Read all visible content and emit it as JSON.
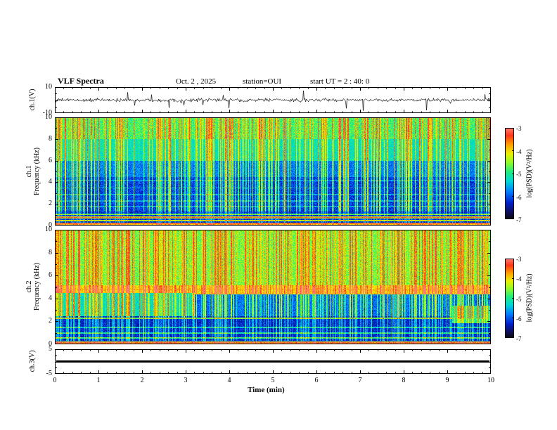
{
  "header": {
    "title": "VLF Spectra",
    "date": "Oct. 2  , 2025",
    "station": "station=OUI",
    "start_ut": "start UT =  2 : 40: 0"
  },
  "axes": {
    "x": {
      "label": "Time (min)",
      "ticks": [
        "0",
        "1",
        "2",
        "3",
        "4",
        "5",
        "6",
        "7",
        "8",
        "9",
        "10"
      ],
      "range": [
        0,
        10
      ]
    },
    "panel1_y": {
      "label": "ch.1(V)",
      "ticks": [
        "10",
        "-10"
      ],
      "range": [
        -10,
        10
      ]
    },
    "panel2_y": {
      "label_line1": "ch.1",
      "label_line2": "Frequency (kHz)",
      "ticks": [
        "10",
        "8",
        "6",
        "4",
        "2",
        "0"
      ],
      "range": [
        0,
        10
      ]
    },
    "panel3_y": {
      "label_line1": "ch.2",
      "label_line2": "Frequency (kHz)",
      "ticks": [
        "10",
        "8",
        "6",
        "4",
        "2",
        "0"
      ],
      "range": [
        0,
        10
      ]
    },
    "panel4_y": {
      "label": "ch.3(V)",
      "ticks": [
        "5",
        "-5"
      ],
      "range": [
        -5,
        5
      ]
    }
  },
  "colorbars": [
    {
      "label": "log(PSD)(V²/Hz)",
      "ticks": [
        "-3",
        "-4",
        "-5",
        "-6",
        "-7"
      ],
      "range_top_to_bottom": [
        -3,
        -7
      ]
    },
    {
      "label": "log(PSD)(V²/Hz)",
      "ticks": [
        "-3",
        "-4",
        "-5",
        "-6",
        "-7"
      ],
      "range_top_to_bottom": [
        -3,
        -7
      ]
    }
  ],
  "chart_data": [
    {
      "type": "line",
      "name": "ch1_waveform",
      "ylabel": "ch.1(V)",
      "ylim": [
        -10,
        10
      ],
      "xlim_min": [
        0,
        10
      ],
      "line_color": "#000000",
      "description": "broadband noisy voltage trace centered on 0 V, ~±1.5 V background with impulsive sferic spikes up to ±8 V across the full 10 minutes"
    },
    {
      "type": "heatmap",
      "name": "ch1_spectrogram",
      "ylabel": "ch.1 Frequency (kHz)",
      "ylim": [
        0,
        10
      ],
      "xlim_min": [
        0,
        10
      ],
      "zlabel": "log(PSD)(V²/Hz)",
      "zlim": [
        -7,
        -3
      ],
      "colormap": "jet",
      "background_profile": [
        {
          "f_khz": [
            8,
            10.1
          ],
          "v": 0.55
        },
        {
          "f_khz": [
            6,
            8
          ],
          "v": 0.46
        },
        {
          "f_khz": [
            4.5,
            6
          ],
          "v": 0.3
        },
        {
          "f_khz": [
            1.3,
            4.5
          ],
          "v": 0.22
        },
        {
          "f_khz": [
            0,
            1.3
          ],
          "v": 0.18
        }
      ],
      "horizontal_lines": [
        {
          "f": 0.2,
          "v": 0.9,
          "w": 0.12
        },
        {
          "f": 0.5,
          "v": 0.7,
          "w": 0.08
        },
        {
          "f": 0.78,
          "v": 0.85,
          "w": 0.07
        },
        {
          "f": 1.05,
          "v": 0.6,
          "w": 0.06
        },
        {
          "f": 1.8,
          "v": 0.4,
          "w": 0.05
        },
        {
          "f": 2.3,
          "v": 0.42,
          "w": 0.05
        },
        {
          "f": 2.9,
          "v": 0.4,
          "w": 0.05
        },
        {
          "f": 3.5,
          "v": 0.38,
          "w": 0.05
        },
        {
          "f": 4.2,
          "v": 0.38,
          "w": 0.05
        }
      ],
      "streaks": {
        "density": 0.38
      },
      "streak_gain": [
        {
          "f_khz": [
            6,
            10.1
          ],
          "g": 0.42
        },
        {
          "f_khz": [
            1.3,
            6
          ],
          "g": 0.5
        },
        {
          "f_khz": [
            0,
            1.3
          ],
          "g": 0.22
        }
      ],
      "noise": 0.14
    },
    {
      "type": "heatmap",
      "name": "ch2_spectrogram",
      "ylabel": "ch.2 Frequency (kHz)",
      "ylim": [
        0,
        10
      ],
      "xlim_min": [
        0,
        10
      ],
      "zlabel": "log(PSD)(V²/Hz)",
      "zlim": [
        -7,
        -3
      ],
      "colormap": "jet",
      "background_profile": [
        {
          "f_khz": [
            5.2,
            10.1
          ],
          "v": 0.6
        },
        {
          "f_khz": [
            4.4,
            5.2
          ],
          "v": 0.75
        },
        {
          "f_khz": [
            2.5,
            4.4
          ],
          "v": 0.28
        },
        {
          "f_khz": [
            0,
            2.5
          ],
          "v": 0.18
        }
      ],
      "time_regions": [
        {
          "t": [
            0,
            0.32
          ],
          "f_khz": [
            2.5,
            4.5
          ],
          "v": 0.45
        },
        {
          "t": [
            0.91,
            1
          ],
          "f_khz": [
            1.9,
            3.4
          ],
          "v": 0.5
        }
      ],
      "horizontal_lines": [
        {
          "f": 0.15,
          "v": 0.9,
          "w": 0.12
        },
        {
          "f": 0.6,
          "v": 0.55,
          "w": 0.07
        },
        {
          "f": 1.0,
          "v": 0.5,
          "w": 0.06
        },
        {
          "f": 1.5,
          "v": 0.45,
          "w": 0.06
        },
        {
          "f": 2.3,
          "v": 0.62,
          "w": 0.08
        },
        {
          "f": 4.8,
          "v": 0.8,
          "w": 0.3
        },
        {
          "f": 2.9,
          "v": 0.52,
          "w": 0.05,
          "t": [
            0,
            0.32
          ]
        },
        {
          "f": 3.4,
          "v": 0.52,
          "w": 0.05,
          "t": [
            0,
            0.32
          ]
        },
        {
          "f": 3.9,
          "v": 0.5,
          "w": 0.05,
          "t": [
            0,
            0.32
          ]
        }
      ],
      "streaks": {
        "density": 0.42
      },
      "streak_gain": [
        {
          "f_khz": [
            5,
            10.1
          ],
          "g": 0.36
        },
        {
          "f_khz": [
            2.3,
            5
          ],
          "g": 0.45
        },
        {
          "f_khz": [
            0,
            2.3
          ],
          "g": 0.28
        }
      ],
      "noise": 0.14
    },
    {
      "type": "line",
      "name": "ch3_waveform",
      "ylabel": "ch.3(V)",
      "ylim": [
        -5,
        5
      ],
      "constant_value": 0,
      "line_color": "#000000",
      "description": "flat constant trace at 0 V drawn as a thick black line across the full width"
    }
  ]
}
